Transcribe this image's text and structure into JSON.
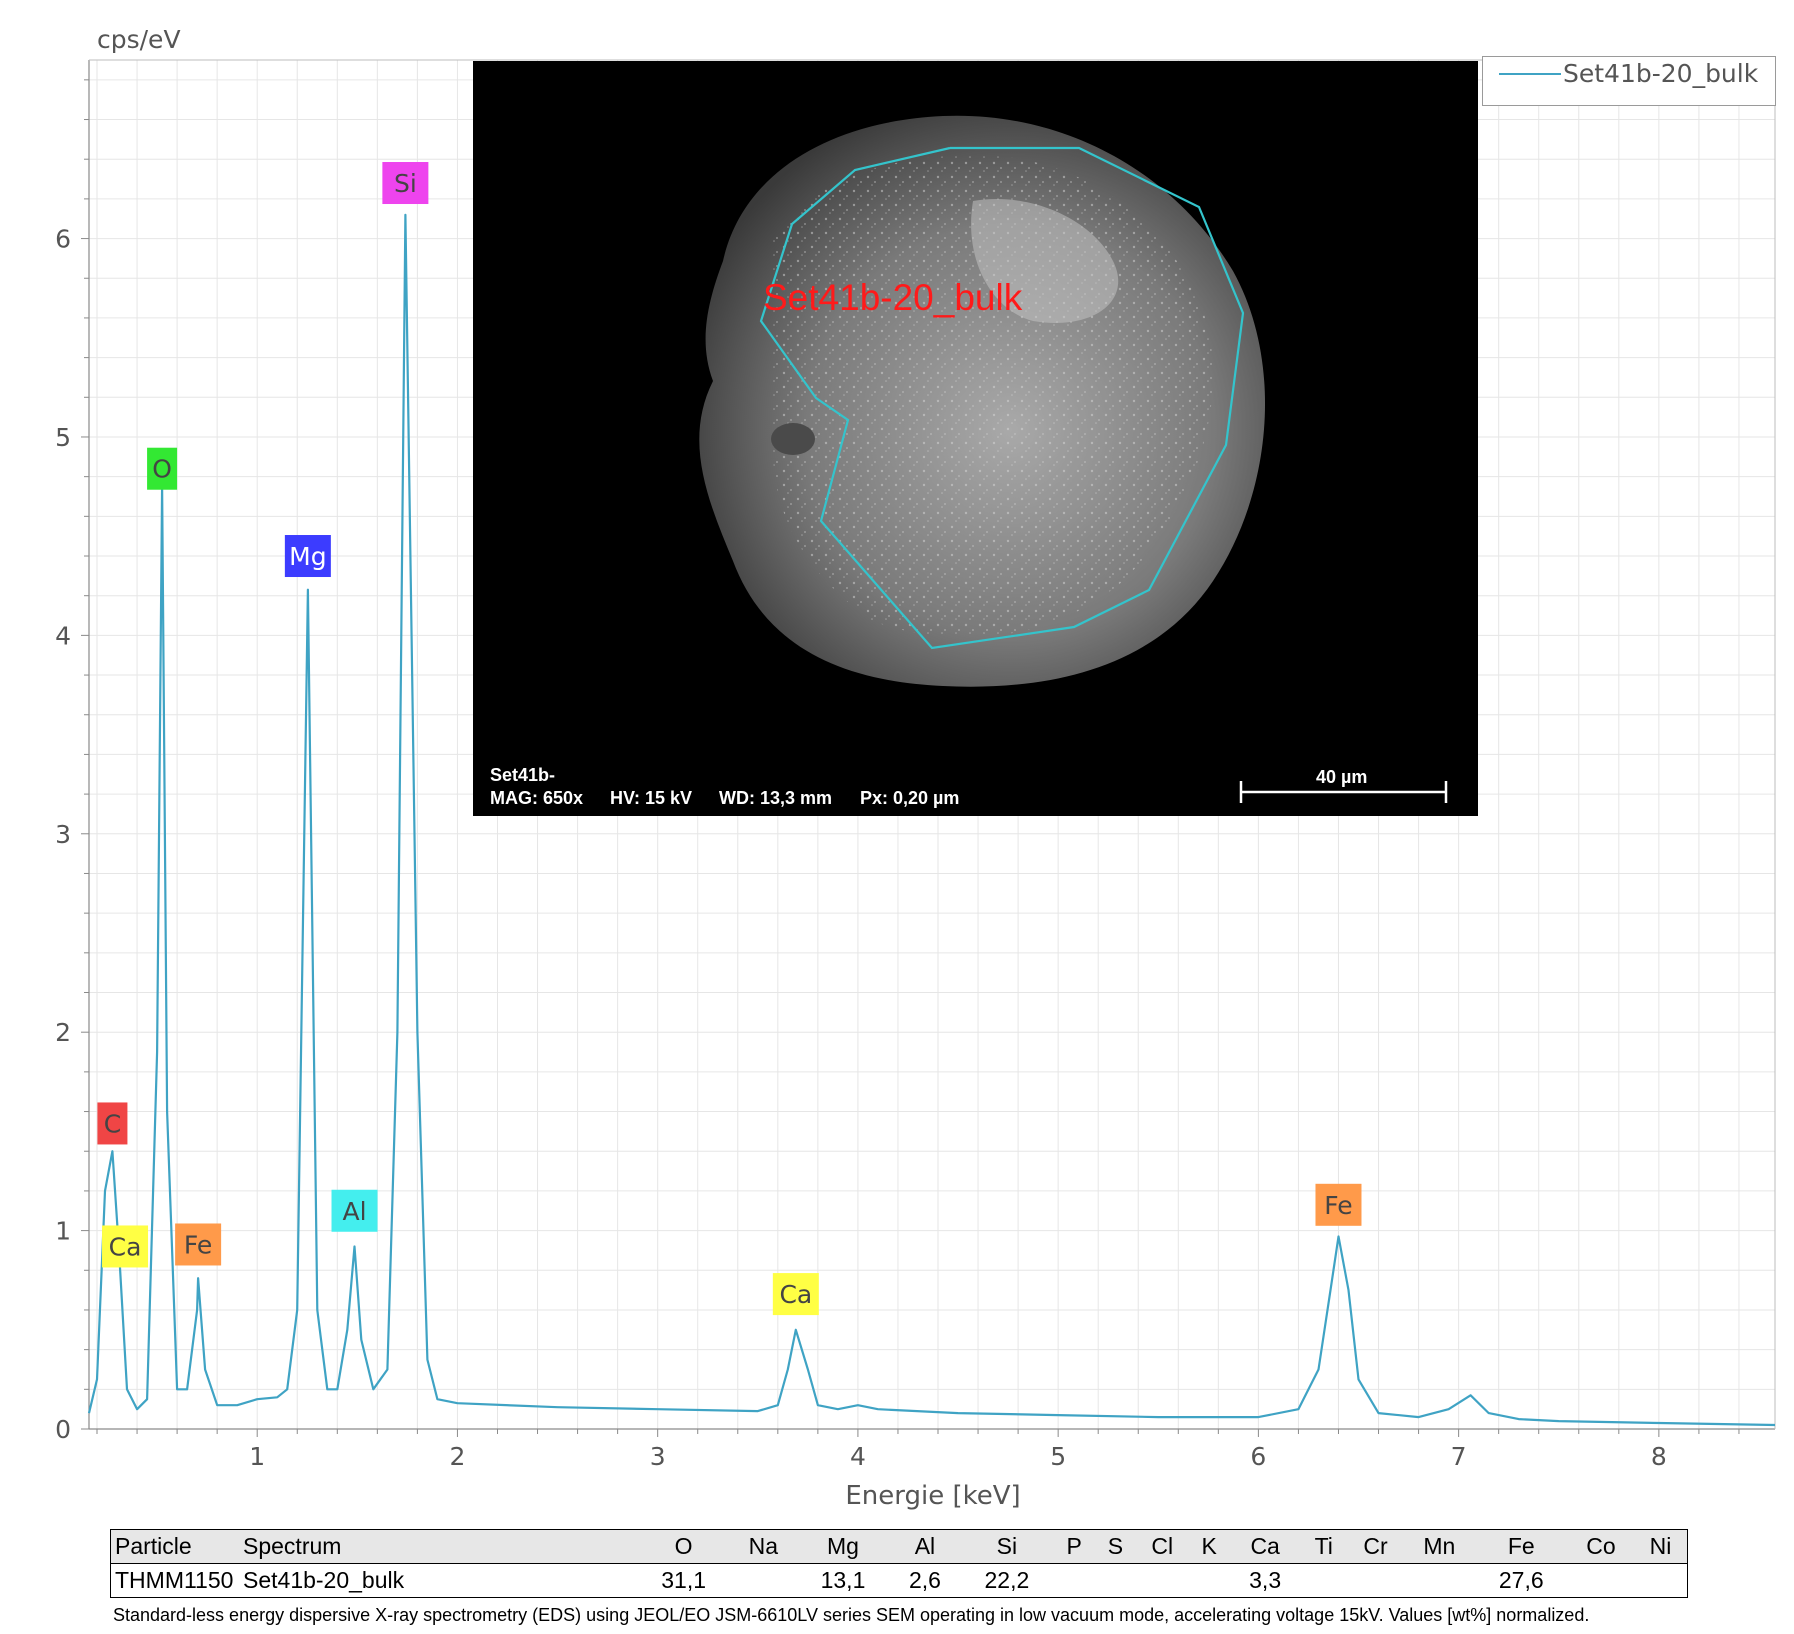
{
  "chart_data": {
    "type": "line",
    "ylabel": "cps/eV",
    "xlabel": "Energie [keV]",
    "xlim": [
      0.16,
      8.58
    ],
    "ylim": [
      0,
      6.9
    ],
    "xticks": [
      1,
      2,
      3,
      4,
      5,
      6,
      7,
      8
    ],
    "yticks": [
      0,
      1,
      2,
      3,
      4,
      5,
      6
    ],
    "grid": true,
    "legend_position": "top-right",
    "series": [
      {
        "name": "Set41b-20_bulk",
        "color": "#3fa3c4",
        "points": [
          [
            0.16,
            0.08
          ],
          [
            0.2,
            0.25
          ],
          [
            0.24,
            1.2
          ],
          [
            0.277,
            1.4
          ],
          [
            0.31,
            0.9
          ],
          [
            0.35,
            0.2
          ],
          [
            0.4,
            0.1
          ],
          [
            0.45,
            0.15
          ],
          [
            0.5,
            1.9
          ],
          [
            0.525,
            4.75
          ],
          [
            0.55,
            1.6
          ],
          [
            0.6,
            0.2
          ],
          [
            0.65,
            0.2
          ],
          [
            0.7,
            0.6
          ],
          [
            0.705,
            0.76
          ],
          [
            0.74,
            0.3
          ],
          [
            0.8,
            0.12
          ],
          [
            0.9,
            0.12
          ],
          [
            1.0,
            0.15
          ],
          [
            1.1,
            0.16
          ],
          [
            1.15,
            0.2
          ],
          [
            1.2,
            0.6
          ],
          [
            1.253,
            4.23
          ],
          [
            1.3,
            0.6
          ],
          [
            1.35,
            0.2
          ],
          [
            1.4,
            0.2
          ],
          [
            1.45,
            0.5
          ],
          [
            1.486,
            0.92
          ],
          [
            1.52,
            0.45
          ],
          [
            1.58,
            0.2
          ],
          [
            1.65,
            0.3
          ],
          [
            1.7,
            2.0
          ],
          [
            1.74,
            6.12
          ],
          [
            1.8,
            2.0
          ],
          [
            1.85,
            0.35
          ],
          [
            1.9,
            0.15
          ],
          [
            2.0,
            0.13
          ],
          [
            2.5,
            0.11
          ],
          [
            3.0,
            0.1
          ],
          [
            3.5,
            0.09
          ],
          [
            3.6,
            0.12
          ],
          [
            3.65,
            0.3
          ],
          [
            3.69,
            0.5
          ],
          [
            3.75,
            0.3
          ],
          [
            3.8,
            0.12
          ],
          [
            3.9,
            0.1
          ],
          [
            4.0,
            0.12
          ],
          [
            4.1,
            0.1
          ],
          [
            4.5,
            0.08
          ],
          [
            5.0,
            0.07
          ],
          [
            5.5,
            0.06
          ],
          [
            6.0,
            0.06
          ],
          [
            6.2,
            0.1
          ],
          [
            6.3,
            0.3
          ],
          [
            6.36,
            0.7
          ],
          [
            6.4,
            0.97
          ],
          [
            6.45,
            0.7
          ],
          [
            6.5,
            0.25
          ],
          [
            6.6,
            0.08
          ],
          [
            6.8,
            0.06
          ],
          [
            6.95,
            0.1
          ],
          [
            7.06,
            0.17
          ],
          [
            7.15,
            0.08
          ],
          [
            7.3,
            0.05
          ],
          [
            7.5,
            0.04
          ],
          [
            8.0,
            0.03
          ],
          [
            8.58,
            0.02
          ]
        ]
      }
    ],
    "element_labels": [
      {
        "text": "C",
        "energy": 0.277,
        "height": 1.54,
        "bg": "#f04545"
      },
      {
        "text": "Ca",
        "energy": 0.34,
        "height": 0.92,
        "bg": "#ffff44"
      },
      {
        "text": "O",
        "energy": 0.525,
        "height": 4.84,
        "bg": "#33e833"
      },
      {
        "text": "Fe",
        "energy": 0.705,
        "height": 0.93,
        "bg": "#ff9a4a"
      },
      {
        "text": "Mg",
        "energy": 1.253,
        "height": 4.4,
        "bg": "#3c3cff"
      },
      {
        "text": "Al",
        "energy": 1.486,
        "height": 1.1,
        "bg": "#44eeee"
      },
      {
        "text": "Si",
        "energy": 1.74,
        "height": 6.28,
        "bg": "#ee44ee"
      },
      {
        "text": "Ca",
        "energy": 3.69,
        "height": 0.68,
        "bg": "#ffff44"
      },
      {
        "text": "Fe",
        "energy": 6.4,
        "height": 1.13,
        "bg": "#ff9a4a"
      }
    ]
  },
  "legend": {
    "entry": "Set41b-20_bulk"
  },
  "sem_image": {
    "region_label": "Set41b-20_bulk",
    "sample_id": "Set41b-",
    "mag": "MAG: 650x",
    "hv": "HV: 15 kV",
    "wd": "WD: 13,3 mm",
    "px": "Px: 0,20 µm",
    "scale_bar": "40 µm"
  },
  "results_table": {
    "columns": [
      "Particle",
      "Spectrum",
      "O",
      "Na",
      "Mg",
      "Al",
      "Si",
      "P",
      "S",
      "Cl",
      "K",
      "Ca",
      "Ti",
      "Cr",
      "Mn",
      "Fe",
      "Co",
      "Ni"
    ],
    "row": [
      "THMM1150",
      "Set41b-20_bulk",
      "31,1",
      "",
      "13,1",
      "2,6",
      "22,2",
      "",
      "",
      "",
      "",
      "3,3",
      "",
      "",
      "",
      "27,6",
      "",
      ""
    ]
  },
  "caption": "Standard-less energy dispersive X-ray spectrometry (EDS) using JEOL/EO JSM-6610LV series SEM operating in low vacuum mode, accelerating voltage 15kV. Values [wt%] normalized."
}
